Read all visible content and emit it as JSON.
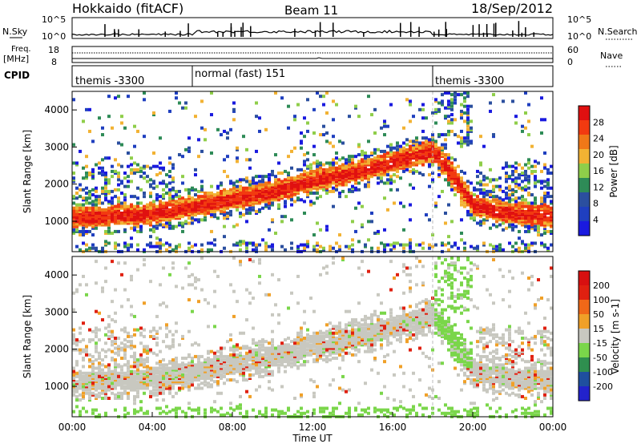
{
  "header": {
    "station": "Hokkaido (fitACF)",
    "beam": "Beam 11",
    "date": "18/Sep/2012"
  },
  "panels": {
    "nsky": {
      "left_label": "N.Sky",
      "right_label": "N.Search",
      "tick_top": "10^5",
      "tick_bottom": "10^0"
    },
    "freq": {
      "left_label_1": "Freq.",
      "left_label_2": "[MHz]",
      "left_tick_top": "18",
      "left_tick_bottom": "8",
      "right_label": "Nave",
      "right_tick_top": "60",
      "right_tick_bottom": "0"
    },
    "cpid": {
      "label": "CPID",
      "segments": [
        {
          "start_ut": "00:00",
          "label": "themis -3300"
        },
        {
          "start_ut": "06:00",
          "label": "normal (fast) 151"
        },
        {
          "start_ut": "18:00",
          "label": "themis -3300"
        }
      ]
    }
  },
  "chart_data": [
    {
      "type": "heatmap",
      "title": "",
      "xlabel": "Time UT",
      "ylabel": "Slant Range [km]",
      "x_ticks": [
        "00:00",
        "04:00",
        "08:00",
        "12:00",
        "16:00",
        "20:00",
        "00:00"
      ],
      "xlim_hours": [
        0,
        24
      ],
      "y_ticks": [
        1000,
        2000,
        3000,
        4000
      ],
      "ylim": [
        180,
        4500
      ],
      "colorbar": {
        "label": "Power [dB]",
        "ticks": [
          4,
          8,
          12,
          16,
          20,
          24,
          28
        ],
        "range": [
          0,
          30
        ],
        "colors": [
          "#1a1adf",
          "#1f3fbf",
          "#2b4f9f",
          "#2e8b57",
          "#8fce4a",
          "#f2b233",
          "#f07818",
          "#f23a10",
          "#e01010"
        ]
      },
      "bands": [
        {
          "name": "main echo",
          "start_h": 0,
          "end_h": 24,
          "range_km_at": [
            [
              0,
              1100
            ],
            [
              4,
              1200
            ],
            [
              6,
              1400
            ],
            [
              8,
              1600
            ],
            [
              10,
              1800
            ],
            [
              12,
              2100
            ],
            [
              14,
              2300
            ],
            [
              16,
              2600
            ],
            [
              18,
              2900
            ],
            [
              19,
              2200
            ],
            [
              20,
              1400
            ],
            [
              22,
              1200
            ],
            [
              24,
              1150
            ]
          ],
          "power_db": 26
        }
      ]
    },
    {
      "type": "heatmap",
      "title": "",
      "xlabel": "Time UT",
      "ylabel": "Slant Range [km]",
      "x_ticks": [
        "00:00",
        "04:00",
        "08:00",
        "12:00",
        "16:00",
        "20:00",
        "00:00"
      ],
      "xlim_hours": [
        0,
        24
      ],
      "y_ticks": [
        1000,
        2000,
        3000,
        4000
      ],
      "ylim": [
        180,
        4500
      ],
      "colorbar": {
        "label": "Velocity [m s-1]",
        "ticks": [
          200,
          100,
          50,
          15,
          -15,
          -50,
          -100,
          -200
        ],
        "range": [
          -250,
          250
        ],
        "colors": [
          "#2222cc",
          "#1f4f9f",
          "#2f8f4f",
          "#7ad64a",
          "#c8c8c0",
          "#f0a028",
          "#f06818",
          "#e02010",
          "#d81010"
        ]
      }
    }
  ]
}
